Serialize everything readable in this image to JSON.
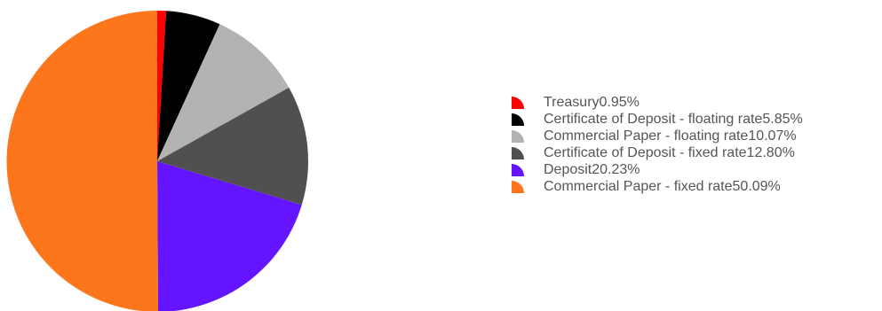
{
  "chart_data": {
    "type": "pie",
    "title": "",
    "legend_position": "right",
    "slices": [
      {
        "label": "Treasury",
        "value": 0.95,
        "display_value": "0.95%",
        "color": "#ff0000"
      },
      {
        "label": "Certificate of Deposit - floating rate",
        "value": 5.85,
        "display_value": "5.85%",
        "color": "#000000"
      },
      {
        "label": "Commercial Paper - floating rate",
        "value": 10.07,
        "display_value": "10.07%",
        "color": "#b3b3b3"
      },
      {
        "label": "Certificate of Deposit - fixed rate",
        "value": 12.8,
        "display_value": "12.80%",
        "color": "#505050"
      },
      {
        "label": "Deposit",
        "value": 20.23,
        "display_value": "20.23%",
        "color": "#6414ff"
      },
      {
        "label": "Commercial Paper - fixed rate",
        "value": 50.09,
        "display_value": "50.09%",
        "color": "#fd761b"
      }
    ]
  }
}
